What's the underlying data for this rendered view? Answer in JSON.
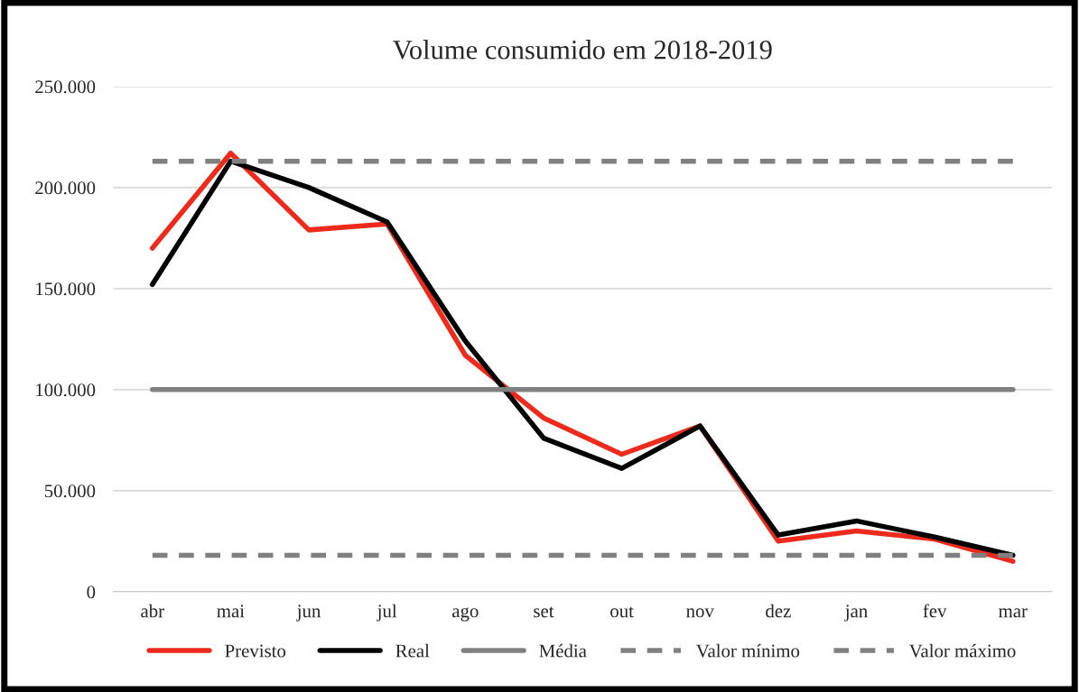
{
  "chart_data": {
    "type": "line",
    "title": "Volume consumido em 2018-2019",
    "categories": [
      "abr",
      "mai",
      "jun",
      "jul",
      "ago",
      "set",
      "out",
      "nov",
      "dez",
      "jan",
      "fev",
      "mar"
    ],
    "series": [
      {
        "name": "Previsto",
        "color": "#ee2a1c",
        "values": [
          170000,
          217000,
          179000,
          182000,
          117000,
          86000,
          68000,
          82000,
          25000,
          30000,
          26000,
          15000
        ]
      },
      {
        "name": "Real",
        "color": "#000000",
        "values": [
          152000,
          213000,
          200000,
          183000,
          124000,
          76000,
          61000,
          82000,
          28000,
          35000,
          27000,
          18000
        ]
      },
      {
        "name": "Média",
        "color": "#808080",
        "values": [
          100000,
          100000,
          100000,
          100000,
          100000,
          100000,
          100000,
          100000,
          100000,
          100000,
          100000,
          100000
        ]
      },
      {
        "name": "Valor mínimo",
        "color": "#808080",
        "line_style": "dashed",
        "values": [
          18000,
          18000,
          18000,
          18000,
          18000,
          18000,
          18000,
          18000,
          18000,
          18000,
          18000,
          18000
        ]
      },
      {
        "name": "Valor máximo",
        "color": "#808080",
        "line_style": "dashed",
        "values": [
          213000,
          213000,
          213000,
          213000,
          213000,
          213000,
          213000,
          213000,
          213000,
          213000,
          213000,
          213000
        ]
      }
    ],
    "ylim": [
      0,
      250000
    ],
    "yticks": [
      0,
      {
        "value": 50000,
        "label": "50.000"
      },
      {
        "value": 100000,
        "label": "100.000"
      },
      {
        "value": 150000,
        "label": "150.000"
      },
      {
        "value": 200000,
        "label": "200.000"
      },
      {
        "value": 250000,
        "label": "250.000"
      }
    ],
    "grid": "y",
    "legend": "bottom",
    "line_style": "solid",
    "marker": "none"
  }
}
